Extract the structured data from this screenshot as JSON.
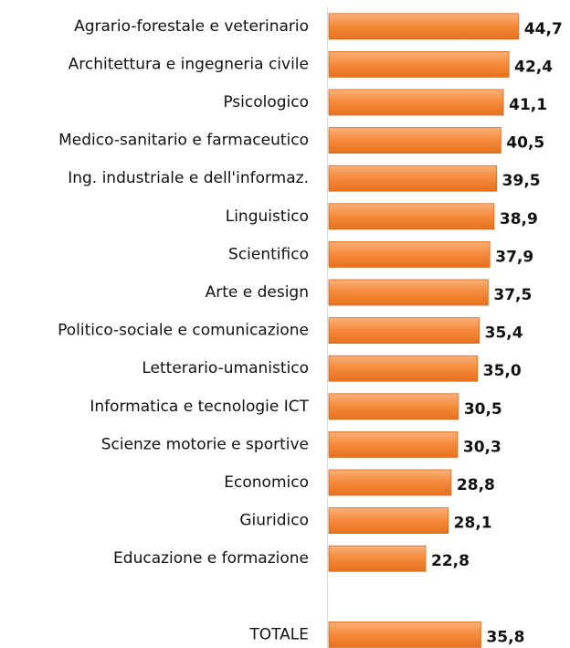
{
  "chart_data": {
    "type": "bar",
    "orientation": "horizontal",
    "categories": [
      "Agrario-forestale e veterinario",
      "Architettura e ingegneria civile",
      "Psicologico",
      "Medico-sanitario e farmaceutico",
      "Ing. industriale e dell'informaz.",
      "Linguistico",
      "Scientifico",
      "Arte e design",
      "Politico-sociale e comunicazione",
      "Letterario-umanistico",
      "Informatica e tecnologie ICT",
      "Scienze motorie e sportive",
      "Economico",
      "Giuridico",
      "Educazione e formazione",
      null,
      "TOTALE"
    ],
    "values": [
      44.7,
      42.4,
      41.1,
      40.5,
      39.5,
      38.9,
      37.9,
      37.5,
      35.4,
      35.0,
      30.5,
      30.3,
      28.8,
      28.1,
      22.8,
      null,
      35.8
    ],
    "value_labels": [
      "44,7",
      "42,4",
      "41,1",
      "40,5",
      "39,5",
      "38,9",
      "37,9",
      "37,5",
      "35,4",
      "35,0",
      "30,5",
      "30,3",
      "28,8",
      "28,1",
      "22,8",
      null,
      "35,8"
    ],
    "color": "#f5893a",
    "xlim": [
      0,
      50
    ]
  }
}
